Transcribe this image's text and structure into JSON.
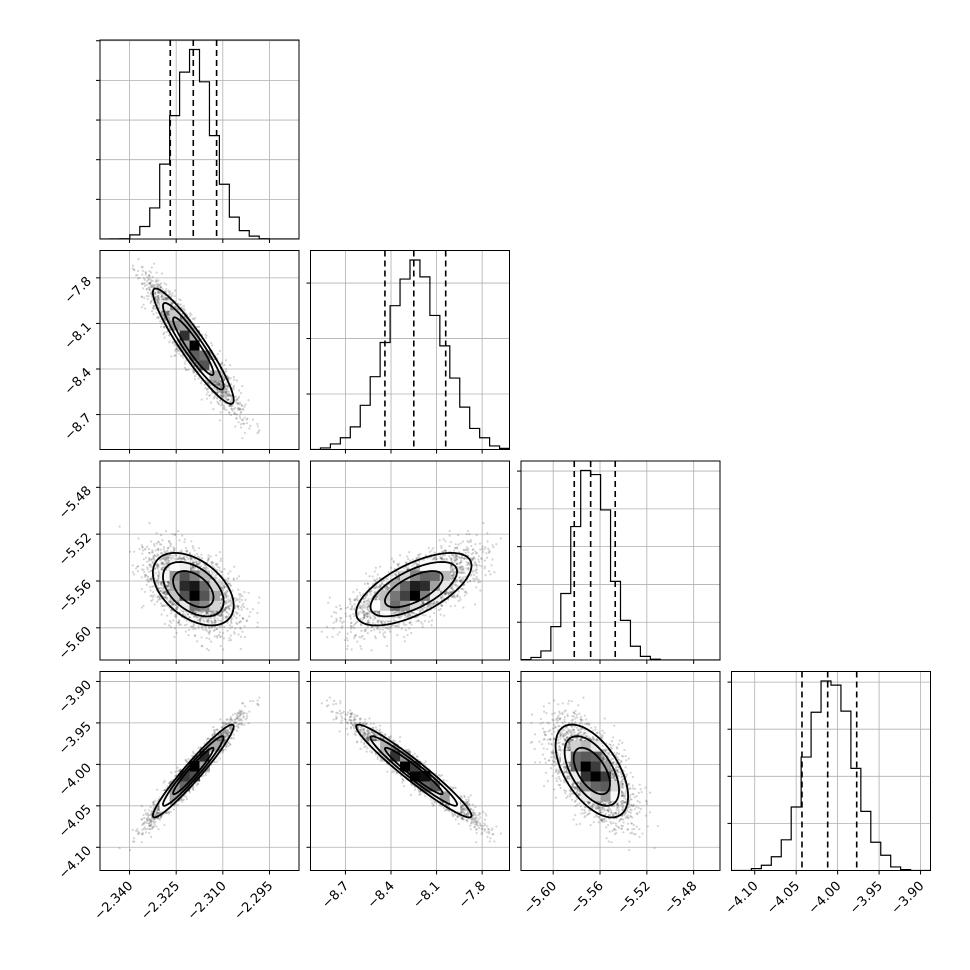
{
  "chart_data": {
    "type": "corner",
    "title": "",
    "grid": true,
    "parameters": [
      {
        "index": 0,
        "range": [
          -2.3495,
          -2.2855
        ],
        "ticks": [
          -2.34,
          -2.325,
          -2.31,
          -2.295
        ],
        "tick_labels": [
          "−2.340",
          "−2.325",
          "−2.310",
          "−2.295"
        ],
        "mean": -2.3195,
        "sd": 0.0065,
        "quantiles": [
          -2.3269,
          -2.3195,
          -2.312
        ]
      },
      {
        "index": 1,
        "range": [
          -8.93,
          -7.62
        ],
        "ticks": [
          -8.7,
          -8.4,
          -8.1,
          -7.8
        ],
        "tick_labels": [
          "−8.7",
          "−8.4",
          "−8.1",
          "−7.8"
        ],
        "mean": -8.25,
        "sd": 0.19,
        "quantiles": [
          -8.44,
          -8.25,
          -8.04
        ]
      },
      {
        "index": 2,
        "range": [
          -5.6275,
          -5.4575
        ],
        "ticks": [
          -5.6,
          -5.56,
          -5.52,
          -5.48
        ],
        "tick_labels": [
          "−5.60",
          "−5.56",
          "−5.52",
          "−5.48"
        ],
        "mean": -5.567,
        "sd": 0.0155,
        "quantiles": [
          -5.582,
          -5.568,
          -5.547
        ]
      },
      {
        "index": 3,
        "range": [
          -4.128,
          -3.888
        ],
        "ticks": [
          -4.1,
          -4.05,
          -4.0,
          -3.95,
          -3.9
        ],
        "tick_labels": [
          "−4.10",
          "−4.05",
          "−4.00",
          "−3.95",
          "−3.90"
        ],
        "mean": -4.008,
        "sd": 0.028,
        "quantiles": [
          -4.043,
          -4.012,
          -3.977
        ]
      }
    ],
    "correlations": {
      "1,0": -0.93,
      "2,0": -0.45,
      "2,1": 0.65,
      "3,0": 0.96,
      "3,1": -0.96,
      "3,2": -0.55
    },
    "histogram_bins": 20,
    "sample_count": 6000
  }
}
